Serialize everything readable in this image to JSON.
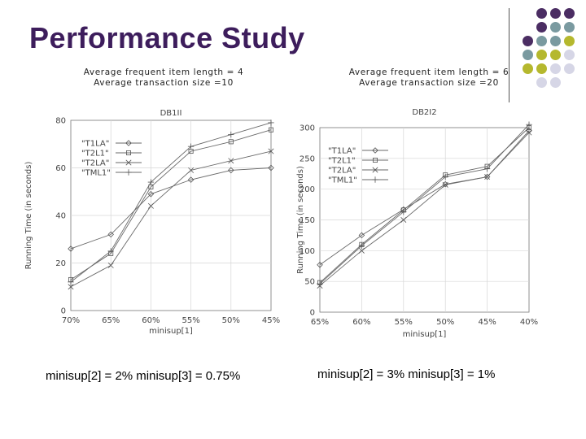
{
  "slide": {
    "title": "Performance Study",
    "left_note_1": "Average frequent item length = 4",
    "left_note_2": "Average transaction size =10",
    "right_note_1": "Average frequent item length = 6",
    "right_note_2": "Average transaction size =20",
    "left_caption": "minisup[2] = 2%  minisup[3] = 0.75%",
    "right_caption": "minisup[2] = 3%  minisup[3] = 1%"
  },
  "decoration": {
    "dot_colors": [
      "#4b2d63",
      "#7a9aa0",
      "#b5b82e",
      "#d6d6e6"
    ],
    "dot_grid": [
      [
        -1,
        0,
        0,
        0
      ],
      [
        -1,
        0,
        1,
        1
      ],
      [
        0,
        1,
        1,
        2
      ],
      [
        1,
        2,
        2,
        3
      ],
      [
        2,
        2,
        3,
        3
      ],
      [
        -1,
        3,
        3,
        -1
      ]
    ]
  },
  "chart_data": [
    {
      "type": "line",
      "title": "DB1II",
      "xlabel": "minisup[1]",
      "ylabel": "Running Time (in seconds)",
      "categories": [
        "70%",
        "65%",
        "60%",
        "55%",
        "50%",
        "45%"
      ],
      "ylim": [
        0,
        80
      ],
      "yticks": [
        0,
        20,
        40,
        60,
        80
      ],
      "grid": true,
      "legend": "upper-left",
      "series": [
        {
          "name": "\"T1LA\"",
          "marker": "diamond",
          "values": [
            26,
            32,
            49,
            55,
            59,
            60
          ]
        },
        {
          "name": "\"T2L1\"",
          "marker": "square",
          "values": [
            13,
            24,
            52,
            67,
            71,
            76
          ]
        },
        {
          "name": "\"T2LA\"",
          "marker": "x",
          "values": [
            10,
            19,
            44,
            59,
            63,
            67
          ]
        },
        {
          "name": "\"TML1\"",
          "marker": "plus",
          "values": [
            12,
            25,
            54,
            69,
            74,
            79
          ]
        }
      ]
    },
    {
      "type": "line",
      "title": "DB2I2",
      "xlabel": "minisup[1]",
      "ylabel": "Running Time (in seconds)",
      "categories": [
        "65%",
        "60%",
        "55%",
        "50%",
        "45%",
        "40%"
      ],
      "ylim": [
        0,
        300
      ],
      "yticks": [
        0,
        50,
        100,
        150,
        200,
        250,
        300
      ],
      "grid": true,
      "legend": "upper-left",
      "series": [
        {
          "name": "\"T1LA\"",
          "marker": "diamond",
          "values": [
            77,
            125,
            167,
            208,
            220,
            295
          ]
        },
        {
          "name": "\"T2L1\"",
          "marker": "square",
          "values": [
            48,
            110,
            166,
            223,
            237,
            300
          ]
        },
        {
          "name": "\"T2LA\"",
          "marker": "x",
          "values": [
            43,
            100,
            150,
            207,
            220,
            292
          ]
        },
        {
          "name": "\"TML1\"",
          "marker": "plus",
          "values": [
            46,
            108,
            163,
            220,
            233,
            305
          ]
        }
      ]
    }
  ]
}
